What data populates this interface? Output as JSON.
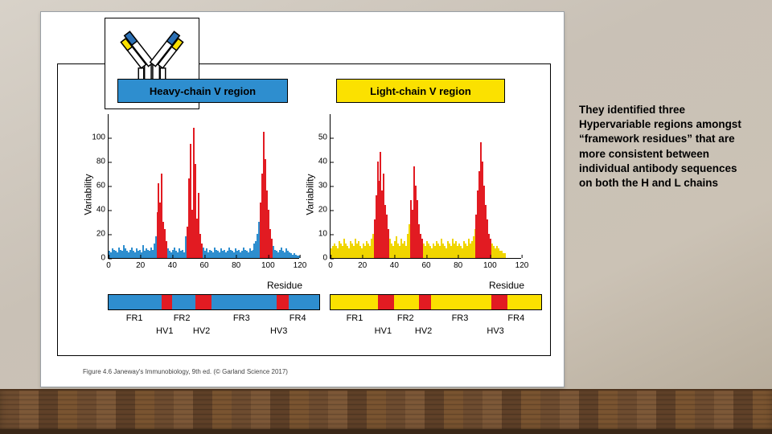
{
  "side_text": "They identified three Hypervariable regions amongst “framework residues” that are more consistent between individual antibody sequences on both the H and L chains",
  "caption": "Figure 4.6 Janeway's Immunobiology, 9th ed. (© Garland Science 2017)",
  "antibody_diagram": {
    "outline": "#000000",
    "heavy_color": "#ffffff",
    "light_color": "#ffffff",
    "v_heavy": "#2b6fb3",
    "v_light": "#fbe100",
    "hinge": "#000000"
  },
  "heavy": {
    "title": "Heavy-chain V region",
    "title_bg": "#2e8ecf",
    "title_fg": "#000000",
    "fg_color": "#2e8ecf",
    "hv_color": "#e21b22",
    "y_label": "Variability",
    "x_label": "Residue",
    "ymax": 120,
    "yticks": [
      0,
      20,
      40,
      60,
      80,
      100
    ],
    "xmax": 120,
    "xticks": [
      0,
      20,
      40,
      60,
      80,
      100,
      120
    ],
    "hv_ranges": [
      [
        30,
        36
      ],
      [
        49,
        58
      ],
      [
        95,
        102
      ]
    ],
    "fr_positions": {
      "FR1": 15,
      "FR2": 42,
      "FR3": 76,
      "FR4": 108
    },
    "hv_positions": {
      "HV1": 33,
      "HV2": 54,
      "HV3": 98
    },
    "values": [
      6,
      5,
      8,
      7,
      6,
      5,
      9,
      7,
      6,
      11,
      8,
      6,
      5,
      7,
      9,
      6,
      5,
      8,
      6,
      7,
      5,
      11,
      6,
      8,
      7,
      6,
      9,
      7,
      12,
      18,
      38,
      62,
      46,
      70,
      30,
      24,
      14,
      8,
      6,
      5,
      7,
      9,
      6,
      5,
      8,
      6,
      7,
      5,
      18,
      26,
      66,
      95,
      40,
      108,
      78,
      33,
      54,
      20,
      12,
      9,
      6,
      8,
      5,
      7,
      6,
      5,
      9,
      7,
      6,
      5,
      8,
      6,
      7,
      5,
      6,
      9,
      7,
      6,
      5,
      8,
      6,
      7,
      5,
      6,
      9,
      7,
      6,
      5,
      8,
      6,
      7,
      12,
      14,
      20,
      30,
      46,
      70,
      105,
      82,
      56,
      40,
      24,
      16,
      10,
      7,
      6,
      5,
      7,
      9,
      6,
      5,
      8,
      6,
      5,
      4,
      3,
      4,
      3,
      2,
      2
    ],
    "strip_bg": "#2e8ecf"
  },
  "light": {
    "title": "Light-chain V region",
    "title_bg": "#fbe100",
    "title_fg": "#000000",
    "fg_color": "#f0d500",
    "hv_color": "#e21b22",
    "y_label": "Variability",
    "x_label": "Residue",
    "ymax": 60,
    "yticks": [
      0,
      10,
      20,
      30,
      40,
      50
    ],
    "xmax": 120,
    "xticks": [
      0,
      20,
      40,
      60,
      80,
      100,
      120
    ],
    "hv_ranges": [
      [
        27,
        36
      ],
      [
        50,
        57
      ],
      [
        91,
        100
      ]
    ],
    "fr_positions": {
      "FR1": 14,
      "FR2": 43,
      "FR3": 74,
      "FR4": 106
    },
    "hv_positions": {
      "HV1": 31,
      "HV2": 54,
      "HV3": 95
    },
    "values": [
      4,
      5,
      6,
      5,
      4,
      7,
      6,
      5,
      8,
      6,
      5,
      4,
      7,
      6,
      5,
      8,
      6,
      7,
      5,
      4,
      6,
      5,
      7,
      6,
      5,
      8,
      10,
      16,
      26,
      40,
      32,
      44,
      28,
      35,
      22,
      18,
      12,
      8,
      6,
      5,
      7,
      9,
      6,
      5,
      8,
      6,
      7,
      5,
      10,
      14,
      24,
      20,
      38,
      30,
      24,
      14,
      10,
      8,
      6,
      5,
      7,
      6,
      5,
      4,
      6,
      5,
      7,
      6,
      5,
      8,
      6,
      5,
      4,
      7,
      6,
      5,
      8,
      6,
      7,
      5,
      6,
      5,
      4,
      7,
      6,
      5,
      8,
      6,
      7,
      9,
      12,
      18,
      28,
      36,
      48,
      40,
      30,
      22,
      16,
      10,
      8,
      6,
      5,
      4,
      5,
      4,
      3,
      3,
      2,
      2,
      0,
      0,
      0,
      0,
      0,
      0,
      0,
      0,
      0,
      0
    ],
    "strip_bg": "#fbe100"
  }
}
